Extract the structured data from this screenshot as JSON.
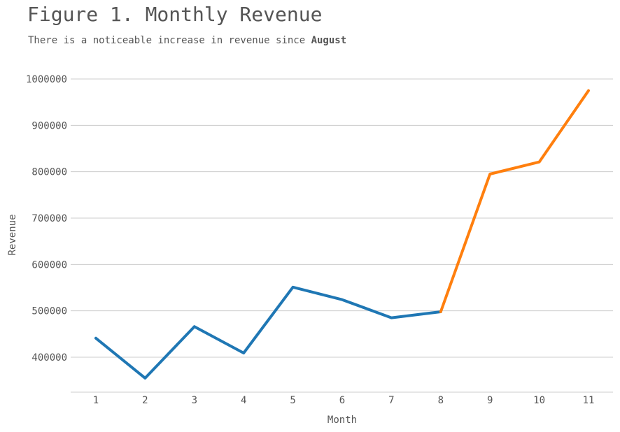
{
  "header": {
    "title": "Figure 1. Monthly Revenue",
    "subtitle_prefix": "There is a noticeable increase in revenue since ",
    "subtitle_emphasis": "August"
  },
  "chart_data": {
    "type": "line",
    "xlabel": "Month",
    "ylabel": "Revenue",
    "x": [
      1,
      2,
      3,
      4,
      5,
      6,
      7,
      8,
      9,
      10,
      11
    ],
    "xticks": [
      "1",
      "2",
      "3",
      "4",
      "5",
      "6",
      "7",
      "8",
      "9",
      "10",
      "11"
    ],
    "yticks": [
      "400000",
      "500000",
      "600000",
      "700000",
      "800000",
      "900000",
      "1000000"
    ],
    "ylim": [
      325000,
      1000000
    ],
    "grid": "horizontal",
    "series": [
      {
        "color": "#1f77b4",
        "x": [
          1,
          2,
          3,
          4,
          5,
          6,
          7,
          8
        ],
        "values": [
          441000,
          355000,
          466000,
          409000,
          551000,
          524000,
          485000,
          498000
        ]
      },
      {
        "color": "#ff7f0e",
        "x": [
          8,
          9,
          10,
          11
        ],
        "values": [
          498000,
          795000,
          821000,
          975000
        ]
      }
    ]
  }
}
